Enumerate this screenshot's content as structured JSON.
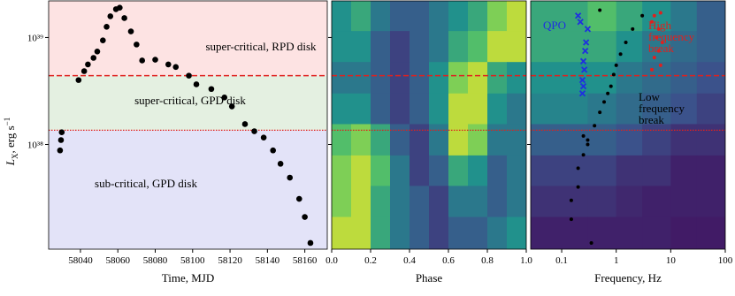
{
  "chart_data": [
    {
      "type": "scatter",
      "xlabel": "Time, MJD",
      "ylabel": "L",
      "ylabel_sub": "X",
      "ylabel_unit": ", erg s",
      "ylabel_sup": "−1",
      "ylog": true,
      "ylim": [
        1.05e+37,
        2.2e+39
      ],
      "yticks": [
        {
          "value": 1e+38,
          "label": "10³⁸"
        },
        {
          "value": 1e+39,
          "label": "10³⁹"
        }
      ],
      "xlim": [
        58023,
        58172
      ],
      "xticks": [
        58040,
        58060,
        58080,
        58100,
        58120,
        58140,
        58160
      ],
      "thresholds": [
        4.4e+38,
        1.36e+38
      ],
      "threshold_color": "#e0201e",
      "regions": [
        {
          "label": "super-critical, RPD disk",
          "color": "#fde3e3"
        },
        {
          "label": "super-critical, GPD disk",
          "color": "#e4f0e1"
        },
        {
          "label": "sub-critical, GPD disk",
          "color": "#e3e3f8"
        }
      ],
      "series": [
        {
          "color": "#000000",
          "x": [
            58029.1,
            58029.6,
            58030,
            58039,
            58042,
            58044,
            58047,
            58049,
            58052,
            58054,
            58056,
            58059,
            58061,
            58063.5,
            58067,
            58070,
            58073,
            58080,
            58087,
            58091,
            58098,
            58102,
            58110,
            58117,
            58121,
            58128,
            58133,
            58138,
            58143,
            58147,
            58152,
            58157,
            58160,
            58163
          ],
          "values": [
            8.8e+37,
            1.1e+38,
            1.3e+38,
            4e+38,
            4.85e+38,
            5.6e+38,
            6.45e+38,
            7.4e+38,
            9.4e+38,
            1.26e+39,
            1.58e+39,
            1.84e+39,
            1.9e+39,
            1.52e+39,
            1.14e+39,
            8.6e+38,
            6.1e+38,
            6.2e+38,
            5.6e+38,
            5.3e+38,
            4.4e+38,
            3.65e+38,
            3.3e+38,
            2.75e+38,
            2.27e+38,
            1.55e+38,
            1.33e+38,
            1.16e+38,
            8.8e+37,
            6.6e+37,
            4.9e+37,
            3.1e+37,
            2.1e+37,
            1.2e+37
          ]
        }
      ]
    },
    {
      "type": "heatmap",
      "xlabel": "Phase",
      "xlim": [
        0,
        1
      ],
      "xticks": [
        {
          "value": 0,
          "label": "0.0"
        },
        {
          "value": 0.2,
          "label": "0.2"
        },
        {
          "value": 0.4,
          "label": "0.4"
        },
        {
          "value": 0.6,
          "label": "0.6"
        },
        {
          "value": 0.8,
          "label": "0.8"
        },
        {
          "value": 1,
          "label": "1.0"
        }
      ],
      "x_bins": [
        0,
        0.1,
        0.2,
        0.3,
        0.4,
        0.5,
        0.6,
        0.7,
        0.8,
        0.9,
        1.0
      ],
      "y_bins": [
        2.2e+39,
        1.15e+39,
        5.9e+38,
        3e+38,
        1.55e+38,
        7.9e+37,
        4.1e+37,
        2.1e+37,
        1.05e+37
      ],
      "intensity": [
        [
          0.5,
          0.6,
          0.4,
          0.3,
          0.3,
          0.4,
          0.5,
          0.6,
          0.8,
          0.9
        ],
        [
          0.5,
          0.5,
          0.3,
          0.2,
          0.3,
          0.4,
          0.6,
          0.7,
          0.9,
          0.9
        ],
        [
          0.4,
          0.4,
          0.3,
          0.2,
          0.3,
          0.5,
          0.8,
          0.9,
          0.6,
          0.5
        ],
        [
          0.5,
          0.5,
          0.3,
          0.2,
          0.3,
          0.5,
          0.9,
          0.9,
          0.5,
          0.4
        ],
        [
          0.7,
          0.8,
          0.6,
          0.3,
          0.2,
          0.4,
          0.9,
          0.8,
          0.4,
          0.4
        ],
        [
          0.8,
          0.9,
          0.7,
          0.4,
          0.2,
          0.3,
          0.6,
          0.5,
          0.3,
          0.4
        ],
        [
          0.8,
          0.9,
          0.6,
          0.4,
          0.3,
          0.2,
          0.4,
          0.4,
          0.3,
          0.4
        ],
        [
          0.9,
          0.9,
          0.6,
          0.4,
          0.3,
          0.2,
          0.3,
          0.3,
          0.4,
          0.5
        ]
      ]
    },
    {
      "type": "heatmap",
      "xlabel": "Frequency, Hz",
      "xlog": true,
      "xlim": [
        0.027,
        100
      ],
      "xticks": [
        0.1,
        1,
        10,
        100
      ],
      "x_bins": [
        0.027,
        0.3,
        1,
        3,
        10,
        30,
        100
      ],
      "y_bins": [
        2.2e+39,
        1.15e+39,
        5.9e+38,
        3e+38,
        1.55e+38,
        7.9e+37,
        4.1e+37,
        2.1e+37,
        1.05e+37
      ],
      "intensity": [
        [
          0.6,
          0.7,
          0.6,
          0.5,
          0.4,
          0.3
        ],
        [
          0.6,
          0.6,
          0.5,
          0.4,
          0.35,
          0.3
        ],
        [
          0.5,
          0.5,
          0.4,
          0.35,
          0.3,
          0.25
        ],
        [
          0.45,
          0.4,
          0.35,
          0.3,
          0.25,
          0.2
        ],
        [
          0.3,
          0.3,
          0.25,
          0.2,
          0.15,
          0.15
        ],
        [
          0.2,
          0.2,
          0.15,
          0.15,
          0.1,
          0.1
        ],
        [
          0.15,
          0.15,
          0.12,
          0.1,
          0.1,
          0.1
        ],
        [
          0.1,
          0.1,
          0.1,
          0.1,
          0.08,
          0.08
        ]
      ],
      "series": [
        {
          "color": "#1f2fe0",
          "marker": "x",
          "x": [
            0.2,
            0.22,
            0.3,
            0.28,
            0.27,
            0.25,
            0.26,
            0.24,
            0.25,
            0.24
          ],
          "values": [
            1.6e+39,
            1.4e+39,
            1.2e+39,
            9e+38,
            7.5e+38,
            6e+38,
            5e+38,
            4e+38,
            3.5e+38,
            3e+38
          ]
        },
        {
          "color": "#e0201e",
          "x": [
            5,
            4.5,
            6,
            5.5,
            7,
            6,
            5,
            6.5,
            4.5,
            6.5
          ],
          "values": [
            1.6e+39,
            1.4e+39,
            1.2e+39,
            1e+39,
            9e+38,
            7.5e+38,
            6.5e+38,
            5.5e+38,
            5e+38,
            1.7e+39
          ]
        },
        {
          "color": "#000000",
          "x": [
            0.15,
            0.15,
            0.2,
            0.2,
            0.25,
            0.3,
            0.25,
            0.4,
            0.5,
            0.6,
            0.7,
            0.8,
            0.9,
            1,
            1.2,
            1.5,
            2,
            3,
            0.5,
            0.3,
            0.35
          ],
          "values": [
            2e+37,
            3e+37,
            4e+37,
            6e+37,
            8e+37,
            1e+38,
            1.2e+38,
            1.5e+38,
            2e+38,
            2.5e+38,
            3e+38,
            3.5e+38,
            4.5e+38,
            5.5e+38,
            7e+38,
            9e+38,
            1.2e+39,
            1.6e+39,
            1.8e+39,
            1.1e+38,
            1.2e+37
          ]
        }
      ],
      "annotations": [
        {
          "lines": [
            "QPO"
          ],
          "color": "#1f2fe0"
        },
        {
          "lines": [
            "High",
            "frequency",
            "break"
          ],
          "color": "#e0201e"
        },
        {
          "lines": [
            "Low",
            "frequency",
            "break"
          ],
          "color": "#000000"
        }
      ]
    }
  ]
}
